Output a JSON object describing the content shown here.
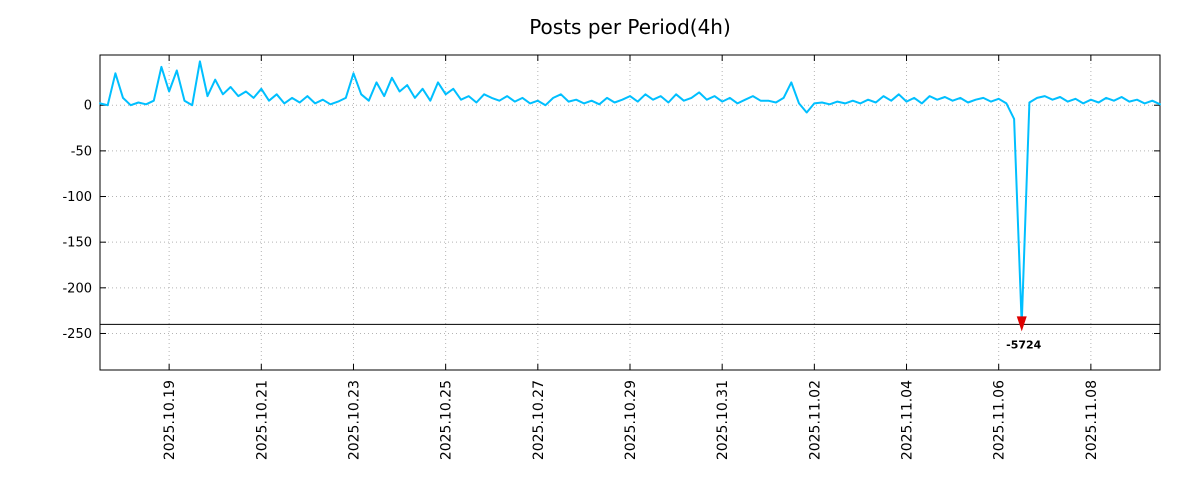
{
  "chart_data": {
    "type": "line",
    "title": "Posts per Period(4h)",
    "x_span_days": 23,
    "points_per_day": 6,
    "x_ticks": [
      {
        "label": "2025.10.19",
        "day": 1.5
      },
      {
        "label": "2025.10.21",
        "day": 3.5
      },
      {
        "label": "2025.10.23",
        "day": 5.5
      },
      {
        "label": "2025.10.25",
        "day": 7.5
      },
      {
        "label": "2025.10.27",
        "day": 9.5
      },
      {
        "label": "2025.10.29",
        "day": 11.5
      },
      {
        "label": "2025.10.31",
        "day": 13.5
      },
      {
        "label": "2025.11.02",
        "day": 15.5
      },
      {
        "label": "2025.11.04",
        "day": 17.5
      },
      {
        "label": "2025.11.06",
        "day": 19.5
      },
      {
        "label": "2025.11.08",
        "day": 21.5
      }
    ],
    "y_ticks": [
      0,
      -50,
      -100,
      -150,
      -200,
      -250
    ],
    "ylim": [
      -290,
      55
    ],
    "grid": true,
    "legend": "none",
    "clip_min": -240,
    "reference_line": {
      "y": -240,
      "color": "#000000"
    },
    "annotation": {
      "text": "-5724",
      "point_index": 120,
      "value": -5724,
      "text_color": "#0000cd",
      "arrow_color": "#dd0000"
    },
    "colors": {
      "line": "#00bfff",
      "grid": "#b4b4b4",
      "axis": "#000000",
      "background": "#ffffff"
    },
    "series": [
      {
        "name": "posts per period",
        "color": "#00bfff",
        "width": 2,
        "values": [
          2,
          0,
          35,
          8,
          0,
          3,
          1,
          5,
          42,
          15,
          38,
          5,
          0,
          48,
          10,
          28,
          12,
          20,
          10,
          15,
          8,
          18,
          5,
          12,
          2,
          8,
          3,
          10,
          2,
          6,
          1,
          4,
          8,
          35,
          12,
          5,
          25,
          10,
          30,
          15,
          22,
          8,
          18,
          5,
          25,
          12,
          18,
          6,
          10,
          3,
          12,
          8,
          5,
          10,
          4,
          8,
          2,
          5,
          0,
          8,
          12,
          4,
          6,
          2,
          5,
          1,
          8,
          3,
          6,
          10,
          4,
          12,
          6,
          10,
          3,
          12,
          5,
          8,
          14,
          6,
          10,
          4,
          8,
          2,
          6,
          10,
          5,
          5,
          3,
          8,
          25,
          2,
          -8,
          2,
          3,
          1,
          4,
          2,
          5,
          2,
          6,
          3,
          10,
          5,
          12,
          4,
          8,
          2,
          10,
          6,
          9,
          5,
          8,
          3,
          6,
          8,
          4,
          7,
          2,
          -15,
          -5724,
          3,
          8,
          10,
          6,
          9,
          4,
          7,
          2,
          6,
          3,
          8,
          5,
          9,
          4,
          6,
          2,
          5,
          1
        ]
      }
    ]
  }
}
